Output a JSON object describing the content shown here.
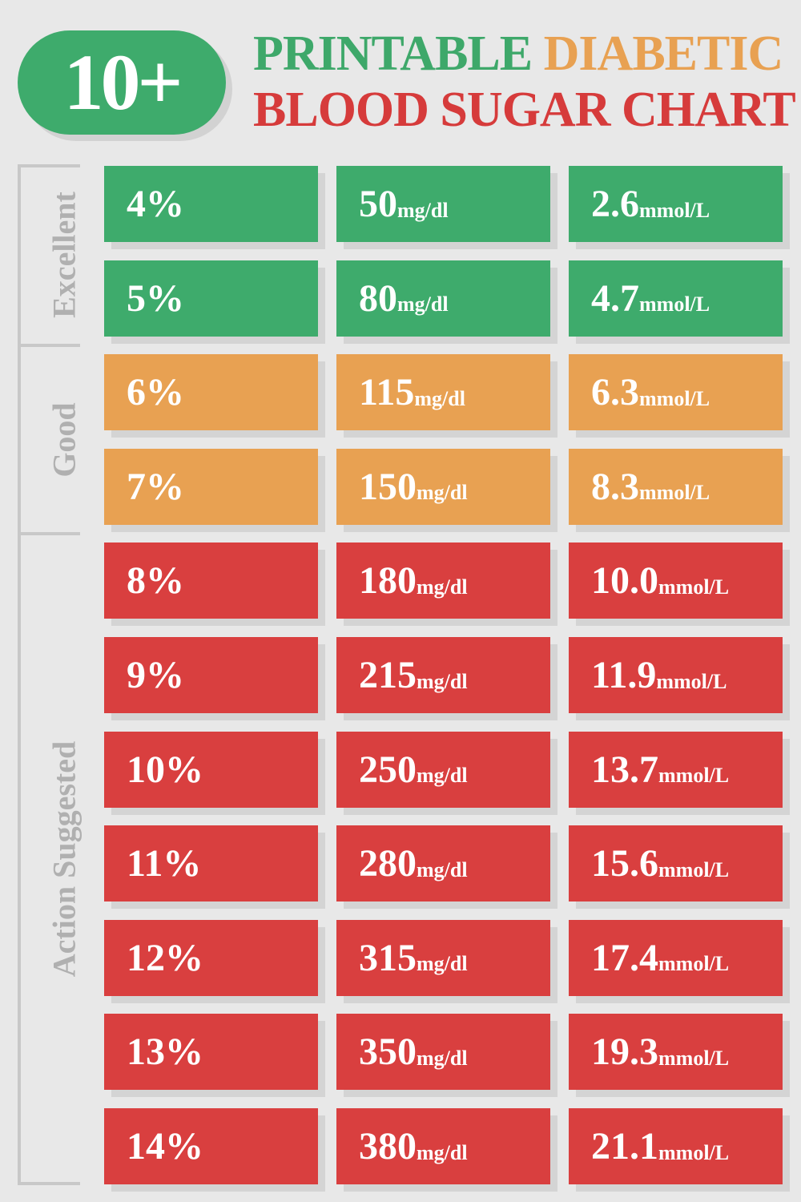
{
  "header": {
    "badge": "10+",
    "title_line1": [
      "PRINTABLE",
      "DIABETIC"
    ],
    "title_line2": "BLOOD SUGAR CHART"
  },
  "groups": [
    {
      "label": "Excellent",
      "color": "#3eab6c",
      "rows": [
        [
          {
            "value": "4%"
          },
          {
            "value": "50",
            "unit": "mg/dl"
          },
          {
            "value": "2.6",
            "unit": "mmol/L"
          }
        ],
        [
          {
            "value": "5%"
          },
          {
            "value": "80",
            "unit": "mg/dl"
          },
          {
            "value": "4.7",
            "unit": "mmol/L"
          }
        ]
      ]
    },
    {
      "label": "Good",
      "color": "#e8a152",
      "rows": [
        [
          {
            "value": "6%"
          },
          {
            "value": "115",
            "unit": "mg/dl"
          },
          {
            "value": "6.3",
            "unit": "mmol/L"
          }
        ],
        [
          {
            "value": "7%"
          },
          {
            "value": "150",
            "unit": "mg/dl"
          },
          {
            "value": "8.3",
            "unit": "mmol/L"
          }
        ]
      ]
    },
    {
      "label": "Action Suggested",
      "color": "#d93f3f",
      "rows": [
        [
          {
            "value": "8%"
          },
          {
            "value": "180",
            "unit": "mg/dl"
          },
          {
            "value": "10.0",
            "unit": "mmol/L"
          }
        ],
        [
          {
            "value": "9%"
          },
          {
            "value": "215",
            "unit": "mg/dl"
          },
          {
            "value": "11.9",
            "unit": "mmol/L"
          }
        ],
        [
          {
            "value": "10%"
          },
          {
            "value": "250",
            "unit": "mg/dl"
          },
          {
            "value": "13.7",
            "unit": "mmol/L"
          }
        ],
        [
          {
            "value": "11%"
          },
          {
            "value": "280",
            "unit": "mg/dl"
          },
          {
            "value": "15.6",
            "unit": "mmol/L"
          }
        ],
        [
          {
            "value": "12%"
          },
          {
            "value": "315",
            "unit": "mg/dl"
          },
          {
            "value": "17.4",
            "unit": "mmol/L"
          }
        ],
        [
          {
            "value": "13%"
          },
          {
            "value": "350",
            "unit": "mg/dl"
          },
          {
            "value": "19.3",
            "unit": "mmol/L"
          }
        ],
        [
          {
            "value": "14%"
          },
          {
            "value": "380",
            "unit": "mg/dl"
          },
          {
            "value": "21.1",
            "unit": "mmol/L"
          }
        ]
      ]
    }
  ]
}
